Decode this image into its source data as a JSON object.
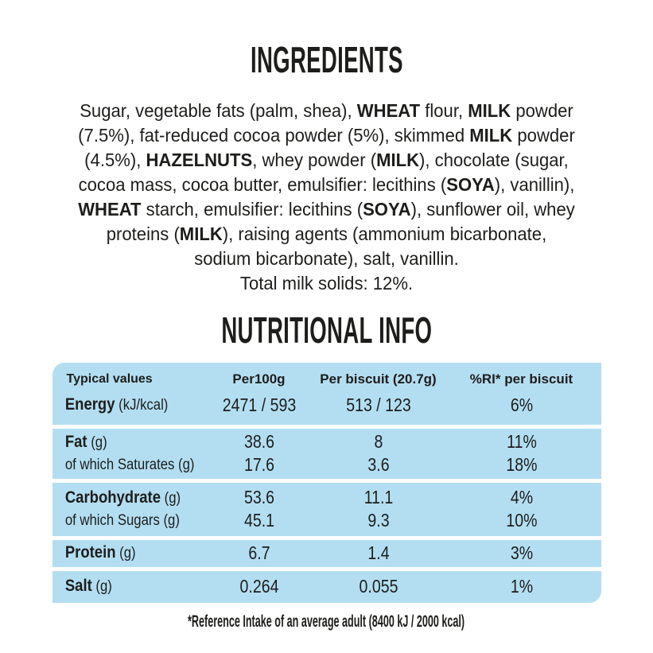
{
  "colors": {
    "background": "#ffffff",
    "text": "#1d1d1b",
    "table_blue": "#b3def2"
  },
  "ingredients": {
    "title": "INGREDIENTS",
    "lines": [
      [
        {
          "t": "Sugar, vegetable fats (palm, shea), "
        },
        {
          "t": "WHEAT",
          "b": true
        },
        {
          "t": " flour, "
        },
        {
          "t": "MILK",
          "b": true
        },
        {
          "t": " powder"
        }
      ],
      [
        {
          "t": "(7.5%), fat-reduced cocoa powder (5%), skimmed "
        },
        {
          "t": "MILK",
          "b": true
        },
        {
          "t": " powder"
        }
      ],
      [
        {
          "t": "(4.5%), "
        },
        {
          "t": "HAZELNUTS",
          "b": true
        },
        {
          "t": ", whey powder ("
        },
        {
          "t": "MILK",
          "b": true
        },
        {
          "t": "), chocolate (sugar,"
        }
      ],
      [
        {
          "t": "cocoa mass, cocoa butter, emulsifier: lecithins ("
        },
        {
          "t": "SOYA",
          "b": true
        },
        {
          "t": "), vanillin),"
        }
      ],
      [
        {
          "t": "WHEAT",
          "b": true
        },
        {
          "t": " starch, emulsifier: lecithins ("
        },
        {
          "t": "SOYA",
          "b": true
        },
        {
          "t": "), sunflower oil, whey"
        }
      ],
      [
        {
          "t": "proteins ("
        },
        {
          "t": "MILK",
          "b": true
        },
        {
          "t": "), raising agents (ammonium bicarbonate,"
        }
      ],
      [
        {
          "t": "sodium bicarbonate), salt, vanillin."
        }
      ],
      [
        {
          "t": "Total milk solids: 12%."
        }
      ]
    ]
  },
  "nutrition": {
    "title": "NUTRITIONAL INFO",
    "columns": [
      "Typical values",
      "Per100g",
      "Per biscuit (20.7g)",
      "%RI* per biscuit"
    ],
    "groups": [
      {
        "header": true,
        "rows": [
          {
            "name": "Energy",
            "unit": "(kJ/kcal)",
            "bold": true,
            "values": [
              "2471 / 593",
              "513 / 123",
              "6%"
            ]
          }
        ]
      },
      {
        "rows": [
          {
            "name": "Fat",
            "unit": "(g)",
            "bold": true,
            "values": [
              "38.6",
              "8",
              "11%"
            ]
          },
          {
            "name": "of which Saturates",
            "unit": "(g)",
            "bold": false,
            "values": [
              "17.6",
              "3.6",
              "18%"
            ]
          }
        ]
      },
      {
        "rows": [
          {
            "name": "Carbohydrate",
            "unit": "(g)",
            "bold": true,
            "values": [
              "53.6",
              "11.1",
              "4%"
            ]
          },
          {
            "name": "of which Sugars",
            "unit": "(g)",
            "bold": false,
            "values": [
              "45.1",
              "9.3",
              "10%"
            ]
          }
        ]
      },
      {
        "rows": [
          {
            "name": "Protein",
            "unit": "(g)",
            "bold": true,
            "values": [
              "6.7",
              "1.4",
              "3%"
            ]
          }
        ]
      },
      {
        "rows": [
          {
            "name": "Salt",
            "unit": "(g)",
            "bold": true,
            "values": [
              "0.264",
              "0.055",
              "1%"
            ]
          }
        ]
      }
    ],
    "footnote": "*Reference Intake of an average adult (8400 kJ / 2000 kcal)"
  }
}
